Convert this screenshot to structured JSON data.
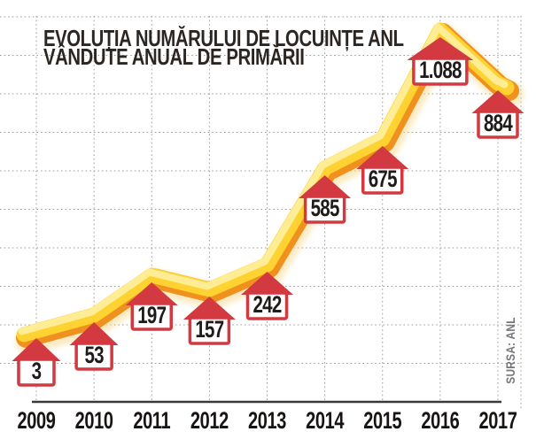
{
  "header": {
    "title_line1": "EVOLUȚIA NUMĂRULUI DE LOCUINȚE ANL",
    "title_line2": "VÂNDUTE ANUAL DE PRIMĂRII"
  },
  "source_label": "SURSA: ANL",
  "chart_data": {
    "type": "line",
    "title": "EVOLUȚIA NUMĂRULUI DE LOCUINȚE ANL VÂNDUTE ANUAL DE PRIMĂRII",
    "categories": [
      "2009",
      "2010",
      "2011",
      "2012",
      "2013",
      "2014",
      "2015",
      "2016",
      "2017"
    ],
    "values": [
      3,
      53,
      197,
      157,
      242,
      585,
      675,
      1088,
      884
    ],
    "value_labels": [
      "3",
      "53",
      "197",
      "157",
      "242",
      "585",
      "675",
      "1.088",
      "884"
    ],
    "series": [
      {
        "name": "Locuințe ANL vândute anual de primării",
        "values": [
          3,
          53,
          197,
          157,
          242,
          585,
          675,
          1088,
          884
        ]
      }
    ],
    "xlabel": "",
    "ylabel": "",
    "ylim": [
      0,
      1150
    ],
    "grid": "dotted",
    "legend": "none",
    "marker": "red-house-arrow",
    "source": "SURSA: ANL",
    "colors": {
      "line_core": "#fdd231",
      "line_shade": "#f0901e",
      "line_highlight": "#ffee9b",
      "line_glow": "#f7d98c",
      "marker_red": "#d23940",
      "marker_box_fill": "#ffffff",
      "label_text": "#1f1b1a",
      "year_text": "#181413",
      "grid": "#9c9c9c",
      "axis": "#3c3836",
      "title": "#2c2623",
      "source_text": "#75767a"
    }
  }
}
